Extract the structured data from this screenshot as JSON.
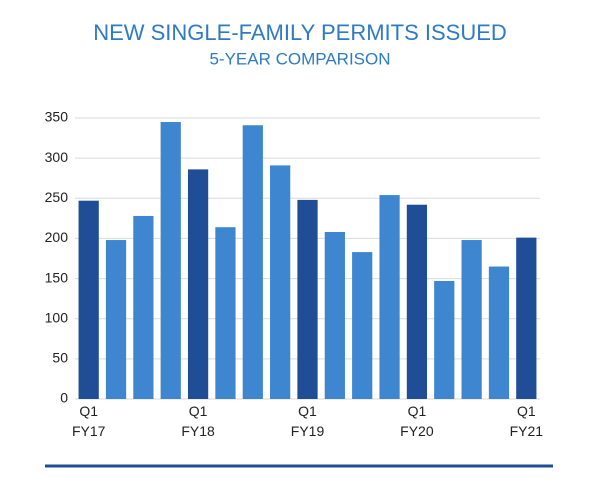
{
  "chart_data": {
    "type": "bar",
    "title": "NEW SINGLE-FAMILY PERMITS ISSUED",
    "subtitle": "5-YEAR COMPARISON",
    "categories": [
      "Q1 FY17",
      null,
      null,
      null,
      "Q1 FY18",
      null,
      null,
      null,
      "Q1 FY19",
      null,
      null,
      null,
      "Q1 FY20",
      null,
      null,
      null,
      "Q1 FY21"
    ],
    "values": [
      247,
      198,
      228,
      345,
      286,
      214,
      341,
      291,
      248,
      208,
      183,
      254,
      242,
      147,
      198,
      165,
      201
    ],
    "colors": [
      "#1f4e96",
      "#3e87d0",
      "#3e87d0",
      "#3e87d0",
      "#1f4e96",
      "#3e87d0",
      "#3e87d0",
      "#3e87d0",
      "#1f4e96",
      "#3e87d0",
      "#3e87d0",
      "#3e87d0",
      "#1f4e96",
      "#3e87d0",
      "#3e87d0",
      "#3e87d0",
      "#1f4e96"
    ],
    "ylim": [
      0,
      350
    ],
    "yticks": [
      0,
      50,
      100,
      150,
      200,
      250,
      300,
      350
    ],
    "grid": true
  }
}
